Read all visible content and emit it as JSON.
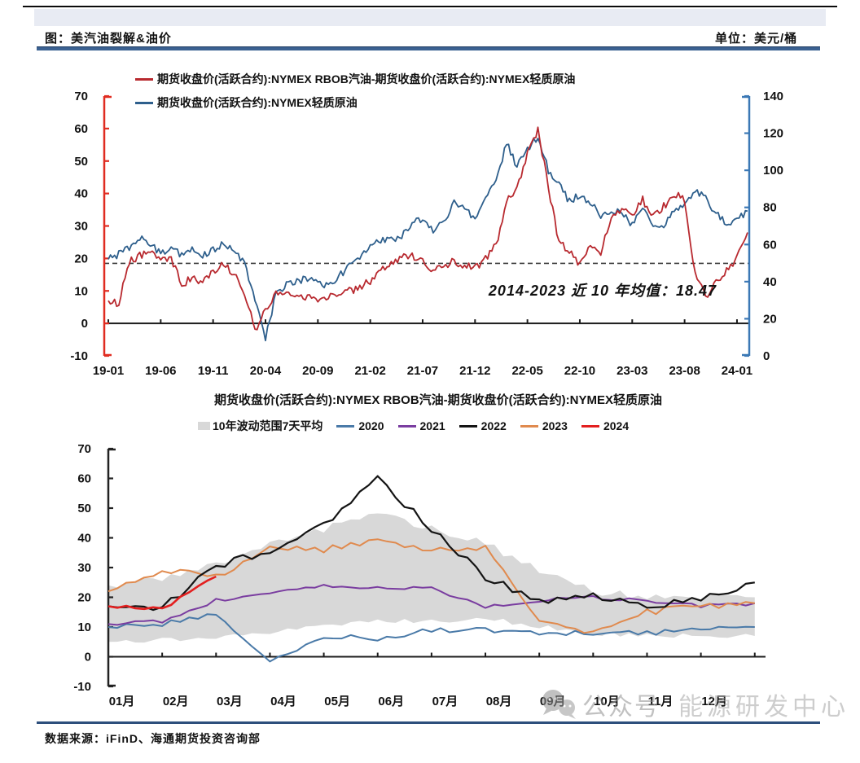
{
  "page": {
    "header": {
      "title": "图：美汽油裂解&油价",
      "unit": "单位：美元/桶"
    },
    "footer": {
      "source": "数据来源：iFinD、海通期货投资咨询部"
    },
    "watermark": {
      "icon": "wechat-icon",
      "text1": "公众号",
      "text2": "能源研发中心"
    }
  },
  "chart_data": [
    {
      "type": "line",
      "title": "美汽油裂解&油价",
      "unit": "美元/桶",
      "x_labels": [
        "19-01",
        "19-06",
        "19-11",
        "20-04",
        "20-09",
        "21-02",
        "21-07",
        "21-12",
        "22-05",
        "22-10",
        "23-03",
        "23-08",
        "24-01"
      ],
      "left_axis": {
        "min": -10,
        "max": 70,
        "ticks": [
          70,
          60,
          50,
          40,
          30,
          20,
          10,
          0,
          -10
        ],
        "color": "#e02c21"
      },
      "right_axis": {
        "min": 0,
        "max": 140,
        "ticks": [
          140,
          120,
          100,
          80,
          60,
          40,
          20,
          0
        ],
        "color": "#3b78b5"
      },
      "mean_line": {
        "value": 18.47,
        "label": "2014-2023 近 10 年均值：18.47"
      },
      "x_unit": "month",
      "x_start": "2019-01",
      "x_end": "2024-02",
      "series": [
        {
          "name": "期货收盘价(活跃合约):NYMEX RBOB汽油-期货收盘价(活跃合约):NYMEX轻质原油",
          "axis": "left",
          "color": "#b8292f",
          "values": [
            7,
            6,
            19,
            21,
            22,
            19,
            20,
            12,
            14,
            13,
            16,
            18,
            15,
            9,
            -2,
            4,
            9,
            9,
            9,
            8,
            7,
            8,
            9,
            10,
            11,
            13,
            17,
            18,
            20,
            21,
            19,
            16,
            18,
            19,
            18,
            17,
            20,
            24,
            38,
            42,
            52,
            60,
            42,
            25,
            22,
            18,
            24,
            22,
            32,
            35,
            33,
            38,
            33,
            36,
            40,
            38,
            15,
            8,
            13,
            16,
            20,
            28
          ]
        },
        {
          "name": "期货收盘价(活跃合约):NYMEX轻质原油",
          "axis": "right",
          "color": "#2e5f8c",
          "values": [
            52,
            55,
            58,
            64,
            61,
            55,
            57,
            55,
            57,
            54,
            57,
            60,
            58,
            50,
            30,
            10,
            33,
            38,
            40,
            42,
            39,
            38,
            43,
            48,
            52,
            59,
            62,
            62,
            65,
            72,
            73,
            67,
            72,
            82,
            80,
            73,
            85,
            93,
            115,
            102,
            112,
            118,
            100,
            92,
            83,
            87,
            82,
            76,
            78,
            77,
            70,
            80,
            71,
            70,
            78,
            82,
            90,
            85,
            77,
            72,
            73,
            78
          ]
        }
      ]
    },
    {
      "type": "line",
      "title": "期货收盘价(活跃合约):NYMEX RBOB汽油-期货收盘价(活跃合约):NYMEX轻质原油",
      "x_labels": [
        "01月",
        "02月",
        "03月",
        "04月",
        "05月",
        "06月",
        "07月",
        "08月",
        "09月",
        "10月",
        "11月",
        "12月"
      ],
      "left_axis": {
        "min": -10,
        "max": 70,
        "ticks": [
          70,
          60,
          50,
          40,
          30,
          20,
          10,
          0,
          -10
        ],
        "color": "#222222"
      },
      "x_unit": "month-of-year",
      "band": {
        "name": "10年波动范围7天平均",
        "color": "#d8d8d8",
        "low": [
          5,
          6,
          6,
          8,
          11,
          12,
          12,
          13,
          10,
          8,
          7,
          7,
          7
        ],
        "high": [
          24,
          26,
          31,
          38,
          43,
          48,
          43,
          38,
          29,
          22,
          20,
          20,
          20
        ]
      },
      "series": [
        {
          "name": "2020",
          "color": "#4a7aa8",
          "values": [
            10,
            11,
            14,
            -2,
            7,
            6,
            9,
            9,
            8,
            8,
            8,
            9,
            10
          ]
        },
        {
          "name": "2021",
          "color": "#7a3da0",
          "values": [
            11,
            12,
            19,
            21,
            24,
            23,
            23,
            17,
            19,
            20,
            19,
            17,
            18
          ]
        },
        {
          "name": "2022",
          "color": "#141414",
          "values": [
            17,
            17,
            30,
            36,
            44,
            60,
            43,
            27,
            19,
            21,
            17,
            20,
            25
          ]
        },
        {
          "name": "2023",
          "color": "#e08a4e",
          "values": [
            22,
            29,
            27,
            37,
            36,
            39,
            36,
            37,
            12,
            8,
            15,
            17,
            18
          ]
        },
        {
          "name": "2024",
          "color": "#e31f1f",
          "values": [
            17,
            16,
            27,
            null,
            null,
            null,
            null,
            null,
            null,
            null,
            null,
            null,
            null
          ]
        }
      ]
    }
  ]
}
